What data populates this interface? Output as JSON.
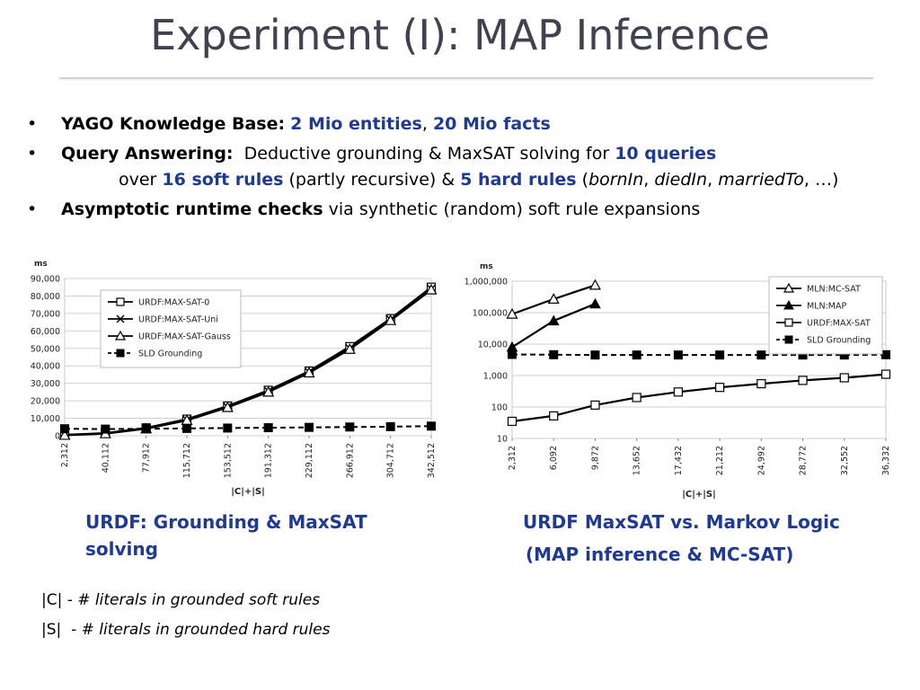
{
  "slide": {
    "title": "Experiment (I): MAP Inference"
  },
  "bullets": {
    "b1_label": "YAGO Knowledge Base:",
    "b1_v1": "2 Mio entities",
    "b1_sep": ",",
    "b1_v2": "20 Mio facts",
    "b2_label": "Query Answering:",
    "b2_text": "Deductive grounding & MaxSAT solving for",
    "b2_v1": "10 queries",
    "b2_over": "over",
    "b2_v2": "16 soft rules",
    "b2_mid": "(partly recursive) &",
    "b2_v3": "5 hard rules",
    "b2_paren_open": "(",
    "b2_i1": "bornIn",
    "b2_c1": ",",
    "b2_i2": "diedIn",
    "b2_c2": ",",
    "b2_i3": "marriedTo",
    "b2_tail": ", …)",
    "b3_label": "Asymptotic runtime checks",
    "b3_text": "via synthetic (random) soft rule expansions",
    "bullet_glyph": "•"
  },
  "captions": {
    "left": "URDF: Grounding & MaxSAT solving",
    "right_line1": "URDF MaxSAT vs. Markov Logic",
    "right_line2": "(MAP inference & MC-SAT)"
  },
  "footnotes": {
    "c_sym": "|C|",
    "c_text": "# literals in grounded soft rules",
    "s_sym": "|S|",
    "s_text": "# literals in grounded hard rules",
    "dash": "-"
  },
  "chart_data": [
    {
      "type": "line",
      "ylabel": "ms",
      "xlabel": "|C|+|S|",
      "ylim": [
        0,
        90000
      ],
      "y_scale": "linear",
      "yticks": [
        "0",
        "10,000",
        "20,000",
        "30,000",
        "40,000",
        "50,000",
        "60,000",
        "70,000",
        "80,000",
        "90,000"
      ],
      "categories": [
        "2,312",
        "40,112",
        "77,912",
        "115,712",
        "153,512",
        "191,312",
        "229,112",
        "266,912",
        "304,712",
        "342,512"
      ],
      "grid": true,
      "legend_position": "top-left",
      "series": [
        {
          "name": "URDF:MAX-SAT-0",
          "marker": "square",
          "dash": false,
          "values": [
            500,
            1500,
            4500,
            9500,
            17000,
            26000,
            37000,
            51000,
            67000,
            85000
          ]
        },
        {
          "name": "URDF:MAX-SAT-Uni",
          "marker": "x",
          "dash": false,
          "values": [
            400,
            1300,
            4200,
            9000,
            16500,
            25500,
            36500,
            50000,
            66500,
            84000
          ]
        },
        {
          "name": "URDF:MAX-SAT-Gauss",
          "marker": "triangle-open",
          "dash": false,
          "values": [
            300,
            1200,
            4000,
            8800,
            16200,
            25000,
            36000,
            49500,
            66000,
            83500
          ]
        },
        {
          "name": "SLD Grounding",
          "marker": "square-filled",
          "dash": true,
          "values": [
            4000,
            3800,
            4000,
            4200,
            4400,
            4600,
            4800,
            5000,
            5200,
            5500
          ]
        }
      ]
    },
    {
      "type": "line",
      "ylabel": "ms",
      "xlabel": "|C|+|S|",
      "ylim": [
        10,
        1000000
      ],
      "y_scale": "log",
      "yticks": [
        "10",
        "100",
        "1,000",
        "10,000",
        "100,000",
        "1,000,000"
      ],
      "categories": [
        "2,312",
        "6,092",
        "9,872",
        "13,652",
        "17,432",
        "21,212",
        "24,992",
        "28,772",
        "32,552",
        "36,332"
      ],
      "grid": true,
      "legend_position": "top-right",
      "series": [
        {
          "name": "MLN:MC-SAT",
          "marker": "triangle-open",
          "dash": false,
          "values": [
            90000,
            270000,
            750000,
            null,
            null,
            null,
            null,
            null,
            null,
            null
          ]
        },
        {
          "name": "MLN:MAP",
          "marker": "triangle-filled",
          "dash": false,
          "values": [
            8000,
            55000,
            190000,
            null,
            null,
            null,
            null,
            null,
            null,
            null
          ]
        },
        {
          "name": "URDF:MAX-SAT",
          "marker": "square",
          "dash": false,
          "values": [
            35,
            52,
            115,
            200,
            300,
            420,
            550,
            700,
            850,
            1100
          ]
        },
        {
          "name": "SLD Grounding",
          "marker": "square-filled",
          "dash": true,
          "values": [
            4700,
            4600,
            4500,
            4500,
            4500,
            4500,
            4500,
            4500,
            4500,
            4600
          ]
        }
      ]
    }
  ]
}
